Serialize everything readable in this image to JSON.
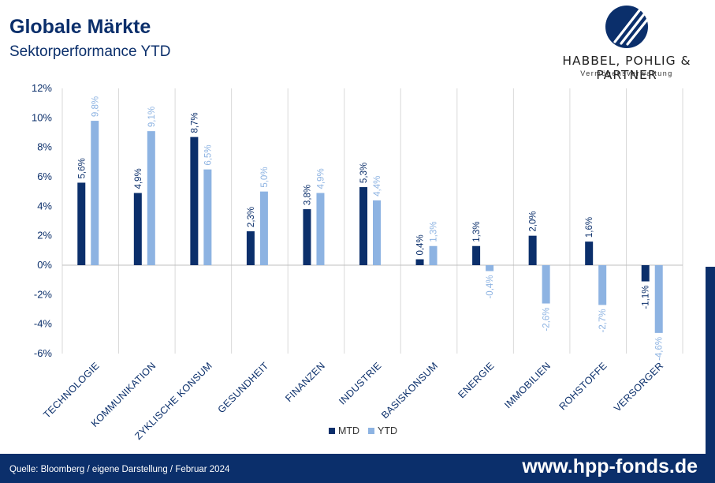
{
  "header": {
    "title": "Globale Märkte",
    "subtitle": "Sektorperformance YTD"
  },
  "logo": {
    "name": "HABBEL, POHLIG & PARTNER",
    "tagline": "Vermögensverwaltung"
  },
  "footer": {
    "source": "Quelle: Bloomberg / eigene Darstellung / Februar 2024",
    "url": "www.hpp-fonds.de"
  },
  "colors": {
    "brand": "#0b2f6b",
    "mtd": "#0b2f6b",
    "ytd": "#8db3e2",
    "grid": "#d9d9d9",
    "axis_text": "#0b2f6b"
  },
  "chart_data": {
    "type": "bar",
    "categories": [
      "TECHNOLOGIE",
      "KOMMUNIKATION",
      "ZYKLISCHE KONSUM",
      "GESUNDHEIT",
      "FINANZEN",
      "INDUSTRIE",
      "BASISKONSUM",
      "ENERGIE",
      "IMMOBILIEN",
      "ROHSTOFFE",
      "VERSORGER"
    ],
    "series": [
      {
        "name": "MTD",
        "values": [
          5.6,
          4.9,
          8.7,
          2.3,
          3.8,
          5.3,
          0.4,
          1.3,
          2.0,
          1.6,
          -1.1
        ],
        "labels": [
          "5,6%",
          "4,9%",
          "8,7%",
          "2,3%",
          "3,8%",
          "5,3%",
          "0,4%",
          "1,3%",
          "2,0%",
          "1,6%",
          "-1,1%"
        ]
      },
      {
        "name": "YTD",
        "values": [
          9.8,
          9.1,
          6.5,
          5.0,
          4.9,
          4.4,
          1.3,
          -0.4,
          -2.6,
          -2.7,
          -4.6
        ],
        "labels": [
          "9,8%",
          "9,1%",
          "6,5%",
          "5,0%",
          "4,9%",
          "4,4%",
          "1,3%",
          "-0,4%",
          "-2,6%",
          "-2,7%",
          "-4,6%"
        ]
      }
    ],
    "ylim": [
      -6,
      12
    ],
    "yticks": [
      12,
      10,
      8,
      6,
      4,
      2,
      0,
      -2,
      -4,
      -6
    ],
    "ytick_labels": [
      "12%",
      "10%",
      "8%",
      "6%",
      "4%",
      "2%",
      "0%",
      "-2%",
      "-4%",
      "-6%"
    ],
    "grid": "vertical separators",
    "legend": "bottom-center"
  }
}
